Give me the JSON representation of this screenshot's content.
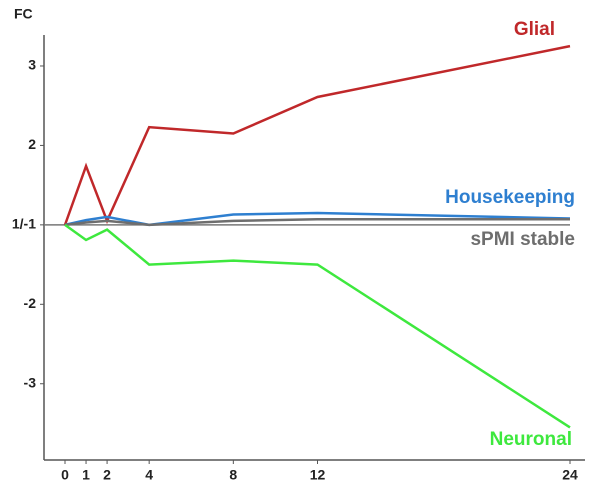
{
  "chart_data": {
    "type": "line",
    "y_label": "FC",
    "x": [
      0,
      1,
      2,
      4,
      8,
      12,
      24
    ],
    "xlim": [
      0,
      24
    ],
    "xticks": [
      0,
      1,
      2,
      4,
      8,
      12,
      24
    ],
    "ylim": [
      -3.96,
      3.39
    ],
    "yticks": [
      3,
      2,
      {
        "value": 1,
        "label": "1/-1"
      },
      -2,
      -3
    ],
    "series": [
      {
        "name": "Glial",
        "color": "#c0282a",
        "values": [
          1,
          1.74,
          1.05,
          2.23,
          2.15,
          2.61,
          3.25
        ]
      },
      {
        "name": "Housekeeping",
        "color": "#2e7fd0",
        "values": [
          1,
          1.06,
          1.1,
          1.0,
          1.13,
          1.15,
          1.08
        ]
      },
      {
        "name": "sPMI stable",
        "color": "#6e6e6e",
        "values": [
          1,
          1.03,
          1.05,
          1.0,
          1.05,
          1.07,
          1.07
        ]
      },
      {
        "name": "Neuronal",
        "color": "#3ee83e",
        "values": [
          1,
          -1.19,
          -1.06,
          -1.5,
          -1.45,
          -1.5,
          -3.55
        ]
      }
    ]
  }
}
